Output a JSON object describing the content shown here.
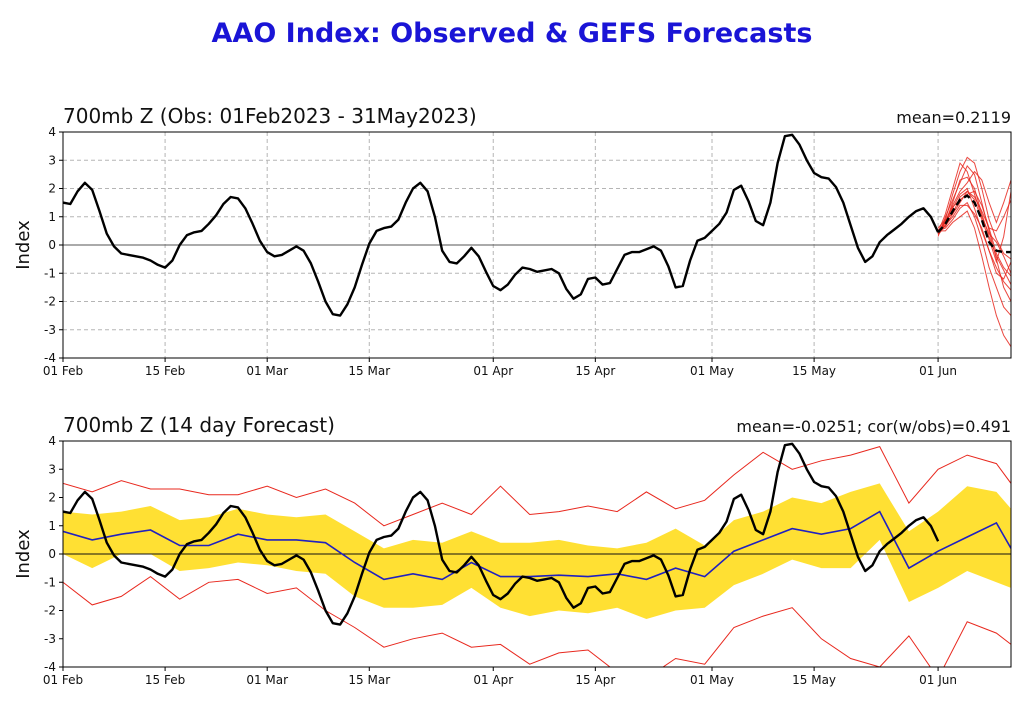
{
  "page_title": "AAO Index: Observed & GEFS Forecasts",
  "colors": {
    "title": "#1a14d6",
    "obs": "#000000",
    "member": "#e8281e",
    "forecast_mean": "#2020c0",
    "band": "#ffe033",
    "bounds": "#e8281e"
  },
  "chart_data": [
    {
      "type": "line",
      "title": "700mb Z (Obs: 01Feb2023 - 31May2023)",
      "annotation": "mean=0.2119",
      "xlabel": "",
      "ylabel": "Index",
      "xlim": [
        0,
        130
      ],
      "ylim": [
        -4,
        4
      ],
      "xticks": [
        {
          "day": 0,
          "label": "01 Feb"
        },
        {
          "day": 14,
          "label": "15 Feb"
        },
        {
          "day": 28,
          "label": "01 Mar"
        },
        {
          "day": 42,
          "label": "15 Mar"
        },
        {
          "day": 59,
          "label": "01 Apr"
        },
        {
          "day": 73,
          "label": "15 Apr"
        },
        {
          "day": 89,
          "label": "01 May"
        },
        {
          "day": 103,
          "label": "15 May"
        },
        {
          "day": 120,
          "label": "01 Jun"
        }
      ],
      "yticks": [
        -4,
        -3,
        -2,
        -1,
        0,
        1,
        2,
        3,
        4
      ],
      "grid": true,
      "observed": {
        "name": "Observed",
        "x": [
          0,
          1,
          2,
          3,
          4,
          5,
          6,
          7,
          8,
          9,
          10,
          11,
          12,
          13,
          14,
          15,
          16,
          17,
          18,
          19,
          20,
          21,
          22,
          23,
          24,
          25,
          26,
          27,
          28,
          29,
          30,
          31,
          32,
          33,
          34,
          35,
          36,
          37,
          38,
          39,
          40,
          41,
          42,
          43,
          44,
          45,
          46,
          47,
          48,
          49,
          50,
          51,
          52,
          53,
          54,
          55,
          56,
          57,
          58,
          59,
          60,
          61,
          62,
          63,
          64,
          65,
          66,
          67,
          68,
          69,
          70,
          71,
          72,
          73,
          74,
          75,
          76,
          77,
          78,
          79,
          80,
          81,
          82,
          83,
          84,
          85,
          86,
          87,
          88,
          89,
          90,
          91,
          92,
          93,
          94,
          95,
          96,
          97,
          98,
          99,
          100,
          101,
          102,
          103,
          104,
          105,
          106,
          107,
          108,
          109,
          110,
          111,
          112,
          113,
          114,
          115,
          116,
          117,
          118,
          119,
          120
        ],
        "values": [
          1.5,
          1.45,
          1.9,
          2.2,
          1.95,
          1.2,
          0.4,
          -0.05,
          -0.3,
          -0.35,
          -0.4,
          -0.45,
          -0.55,
          -0.7,
          -0.8,
          -0.55,
          0,
          0.35,
          0.45,
          0.5,
          0.75,
          1.05,
          1.45,
          1.7,
          1.65,
          1.3,
          0.75,
          0.15,
          -0.25,
          -0.4,
          -0.35,
          -0.2,
          -0.05,
          -0.2,
          -0.65,
          -1.3,
          -2.0,
          -2.45,
          -2.5,
          -2.1,
          -1.5,
          -0.7,
          0.05,
          0.5,
          0.6,
          0.65,
          0.9,
          1.5,
          2.0,
          2.2,
          1.9,
          1.0,
          -0.2,
          -0.6,
          -0.65,
          -0.4,
          -0.1,
          -0.4,
          -0.95,
          -1.45,
          -1.6,
          -1.4,
          -1.05,
          -0.8,
          -0.85,
          -0.95,
          -0.9,
          -0.85,
          -1.0,
          -1.55,
          -1.9,
          -1.75,
          -1.2,
          -1.15,
          -1.4,
          -1.35,
          -0.85,
          -0.35,
          -0.25,
          -0.25,
          -0.15,
          -0.05,
          -0.2,
          -0.75,
          -1.5,
          -1.45,
          -0.55,
          0.15,
          0.25,
          0.5,
          0.75,
          1.15,
          1.95,
          2.1,
          1.55,
          0.85,
          0.7,
          1.5,
          2.9,
          3.85,
          3.9,
          3.55,
          3.0,
          2.55,
          2.4,
          2.35,
          2.05,
          1.5,
          0.7,
          -0.1,
          -0.6,
          -0.4,
          0.1,
          0.35,
          0.55,
          0.75,
          1.0,
          1.2,
          1.3,
          1.0,
          0.45
        ]
      },
      "forecast_mean": {
        "name": "GEFS ensemble mean",
        "x": [
          120,
          121,
          122,
          123,
          124,
          125,
          126,
          127,
          128,
          129,
          130
        ],
        "values": [
          0.45,
          0.75,
          1.2,
          1.6,
          1.75,
          1.5,
          0.9,
          0.1,
          -0.2,
          -0.25,
          -0.25
        ]
      },
      "ensemble_members": [
        {
          "name": "member 1",
          "x": [
            120,
            121,
            122,
            123,
            124,
            125,
            126,
            127,
            128,
            129,
            130
          ],
          "values": [
            0.4,
            0.9,
            1.8,
            2.6,
            3.1,
            2.9,
            2.0,
            0.9,
            0.2,
            -0.3,
            -0.5
          ]
        },
        {
          "name": "member 2",
          "x": [
            120,
            121,
            122,
            123,
            124,
            125,
            126,
            127,
            128,
            129,
            130
          ],
          "values": [
            0.5,
            0.6,
            0.9,
            1.3,
            1.5,
            1.0,
            0.2,
            -0.8,
            -1.5,
            -2.2,
            -2.5
          ]
        },
        {
          "name": "member 3",
          "x": [
            120,
            121,
            122,
            123,
            124,
            125,
            126,
            127,
            128,
            129,
            130
          ],
          "values": [
            0.3,
            1.0,
            1.6,
            2.2,
            2.8,
            2.5,
            1.5,
            0.5,
            -0.5,
            -1.5,
            -2.0
          ]
        },
        {
          "name": "member 4",
          "x": [
            120,
            121,
            122,
            123,
            124,
            125,
            126,
            127,
            128,
            129,
            130
          ],
          "values": [
            0.5,
            0.5,
            0.8,
            1.0,
            1.2,
            0.6,
            -0.4,
            -1.5,
            -2.5,
            -3.2,
            -3.6
          ]
        },
        {
          "name": "member 5",
          "x": [
            120,
            121,
            122,
            123,
            124,
            125,
            126,
            127,
            128,
            129,
            130
          ],
          "values": [
            0.4,
            0.8,
            1.4,
            1.9,
            2.2,
            2.6,
            2.3,
            1.5,
            0.8,
            1.5,
            2.3
          ]
        },
        {
          "name": "member 6",
          "x": [
            120,
            121,
            122,
            123,
            124,
            125,
            126,
            127,
            128,
            129,
            130
          ],
          "values": [
            0.6,
            0.9,
            1.1,
            1.5,
            1.9,
            1.7,
            1.2,
            0.6,
            0.5,
            1.0,
            1.6
          ]
        },
        {
          "name": "member 7",
          "x": [
            120,
            121,
            122,
            123,
            124,
            125,
            126,
            127,
            128,
            129,
            130
          ],
          "values": [
            0.35,
            0.7,
            1.3,
            1.8,
            2.0,
            1.3,
            0.5,
            -0.2,
            -0.8,
            -1.3,
            -1.6
          ]
        },
        {
          "name": "member 8",
          "x": [
            120,
            121,
            122,
            123,
            124,
            125,
            126,
            127,
            128,
            129,
            130
          ],
          "values": [
            0.45,
            1.1,
            2.0,
            2.9,
            2.6,
            1.8,
            1.0,
            0.4,
            0.1,
            -0.4,
            -1.0
          ]
        },
        {
          "name": "member 9",
          "x": [
            120,
            121,
            122,
            123,
            124,
            125,
            126,
            127,
            128,
            129,
            130
          ],
          "values": [
            0.5,
            0.7,
            1.0,
            1.4,
            1.4,
            1.1,
            0.6,
            -0.2,
            -1.0,
            -1.2,
            -0.6
          ]
        },
        {
          "name": "member 10",
          "x": [
            120,
            121,
            122,
            123,
            124,
            125,
            126,
            127,
            128,
            129,
            130
          ],
          "values": [
            0.4,
            0.8,
            1.5,
            2.3,
            2.4,
            2.0,
            1.1,
            0.3,
            -0.4,
            -0.9,
            -1.4
          ]
        },
        {
          "name": "member 11",
          "x": [
            120,
            121,
            122,
            123,
            124,
            125,
            126,
            127,
            128,
            129,
            130
          ],
          "values": [
            0.55,
            0.65,
            1.1,
            1.7,
            1.9,
            1.6,
            0.9,
            0.2,
            -0.6,
            0.3,
            1.9
          ]
        },
        {
          "name": "member 12",
          "x": [
            120,
            121,
            122,
            123,
            124,
            125,
            126,
            127,
            128,
            129,
            130
          ],
          "values": [
            0.4,
            0.85,
            1.35,
            1.6,
            1.8,
            1.9,
            1.4,
            0.6,
            -0.3,
            -0.8,
            -1.1
          ]
        }
      ]
    },
    {
      "type": "line",
      "title": "700mb Z (14 day Forecast)",
      "annotation": "mean=-0.0251; cor(w/obs)=0.491",
      "xlabel": "",
      "ylabel": "Index",
      "xlim": [
        0,
        130
      ],
      "ylim": [
        -4,
        4
      ],
      "xticks": [
        {
          "day": 0,
          "label": "01 Feb"
        },
        {
          "day": 14,
          "label": "15 Feb"
        },
        {
          "day": 28,
          "label": "01 Mar"
        },
        {
          "day": 42,
          "label": "15 Mar"
        },
        {
          "day": 59,
          "label": "01 Apr"
        },
        {
          "day": 73,
          "label": "15 Apr"
        },
        {
          "day": 89,
          "label": "01 May"
        },
        {
          "day": 103,
          "label": "15 May"
        },
        {
          "day": 120,
          "label": "01 Jun"
        }
      ],
      "yticks": [
        -4,
        -3,
        -2,
        -1,
        0,
        1,
        2,
        3,
        4
      ],
      "grid": false,
      "series": [
        {
          "name": "Forecast mean",
          "x": [
            0,
            4,
            8,
            12,
            16,
            20,
            24,
            28,
            32,
            36,
            40,
            44,
            48,
            52,
            56,
            60,
            64,
            68,
            72,
            76,
            80,
            84,
            88,
            92,
            96,
            100,
            104,
            108,
            112,
            116,
            120,
            124,
            128,
            130
          ],
          "values": [
            0.8,
            0.5,
            0.7,
            0.85,
            0.3,
            0.3,
            0.7,
            0.5,
            0.5,
            0.4,
            -0.3,
            -0.9,
            -0.7,
            -0.9,
            -0.3,
            -0.8,
            -0.8,
            -0.75,
            -0.8,
            -0.7,
            -0.9,
            -0.5,
            -0.8,
            0.1,
            0.5,
            0.9,
            0.7,
            0.9,
            1.5,
            -0.5,
            0.1,
            0.6,
            1.1,
            0.2
          ]
        },
        {
          "name": "Upper bound",
          "x": [
            0,
            4,
            8,
            12,
            16,
            20,
            24,
            28,
            32,
            36,
            40,
            44,
            48,
            52,
            56,
            60,
            64,
            68,
            72,
            76,
            80,
            84,
            88,
            92,
            96,
            100,
            104,
            108,
            112,
            116,
            120,
            124,
            128,
            130
          ],
          "values": [
            2.5,
            2.2,
            2.6,
            2.3,
            2.3,
            2.1,
            2.1,
            2.4,
            2.0,
            2.3,
            1.8,
            1.0,
            1.4,
            1.8,
            1.4,
            2.4,
            1.4,
            1.5,
            1.7,
            1.5,
            2.2,
            1.6,
            1.9,
            2.8,
            3.6,
            3.0,
            3.3,
            3.5,
            3.8,
            1.8,
            3.0,
            3.5,
            3.2,
            2.5
          ]
        },
        {
          "name": "Lower bound",
          "x": [
            0,
            4,
            8,
            12,
            16,
            20,
            24,
            28,
            32,
            36,
            40,
            44,
            48,
            52,
            56,
            60,
            64,
            68,
            72,
            76,
            80,
            84,
            88,
            92,
            96,
            100,
            104,
            108,
            112,
            116,
            120,
            124,
            128,
            130
          ],
          "values": [
            -1.0,
            -1.8,
            -1.5,
            -0.8,
            -1.6,
            -1.0,
            -0.9,
            -1.4,
            -1.2,
            -2.0,
            -2.6,
            -3.3,
            -3.0,
            -2.8,
            -3.3,
            -3.2,
            -3.9,
            -3.5,
            -3.4,
            -4.2,
            -4.4,
            -3.7,
            -3.9,
            -2.6,
            -2.2,
            -1.9,
            -3.0,
            -3.7,
            -4.0,
            -2.9,
            -4.4,
            -2.4,
            -2.8,
            -3.2
          ]
        },
        {
          "name": "Band upper",
          "x": [
            0,
            4,
            8,
            12,
            16,
            20,
            24,
            28,
            32,
            36,
            40,
            44,
            48,
            52,
            56,
            60,
            64,
            68,
            72,
            76,
            80,
            84,
            88,
            92,
            96,
            100,
            104,
            108,
            112,
            116,
            120,
            124,
            128,
            130
          ],
          "values": [
            1.5,
            1.4,
            1.5,
            1.7,
            1.2,
            1.3,
            1.6,
            1.4,
            1.3,
            1.4,
            0.8,
            0.2,
            0.5,
            0.4,
            0.8,
            0.4,
            0.4,
            0.5,
            0.3,
            0.2,
            0.4,
            0.9,
            0.3,
            1.2,
            1.5,
            2.0,
            1.8,
            2.2,
            2.5,
            0.8,
            1.5,
            2.4,
            2.2,
            1.6
          ]
        },
        {
          "name": "Band lower",
          "x": [
            0,
            4,
            8,
            12,
            16,
            20,
            24,
            28,
            32,
            36,
            40,
            44,
            48,
            52,
            56,
            60,
            64,
            68,
            72,
            76,
            80,
            84,
            88,
            92,
            96,
            100,
            104,
            108,
            112,
            116,
            120,
            124,
            128,
            130
          ],
          "values": [
            0.0,
            -0.5,
            0.0,
            0.0,
            -0.6,
            -0.5,
            -0.3,
            -0.4,
            -0.6,
            -0.7,
            -1.5,
            -1.9,
            -1.9,
            -1.8,
            -1.2,
            -1.9,
            -2.2,
            -2.0,
            -2.1,
            -1.9,
            -2.3,
            -2.0,
            -1.9,
            -1.1,
            -0.7,
            -0.2,
            -0.5,
            -0.5,
            0.5,
            -1.7,
            -1.2,
            -0.6,
            -1.0,
            -1.2
          ]
        }
      ]
    }
  ]
}
